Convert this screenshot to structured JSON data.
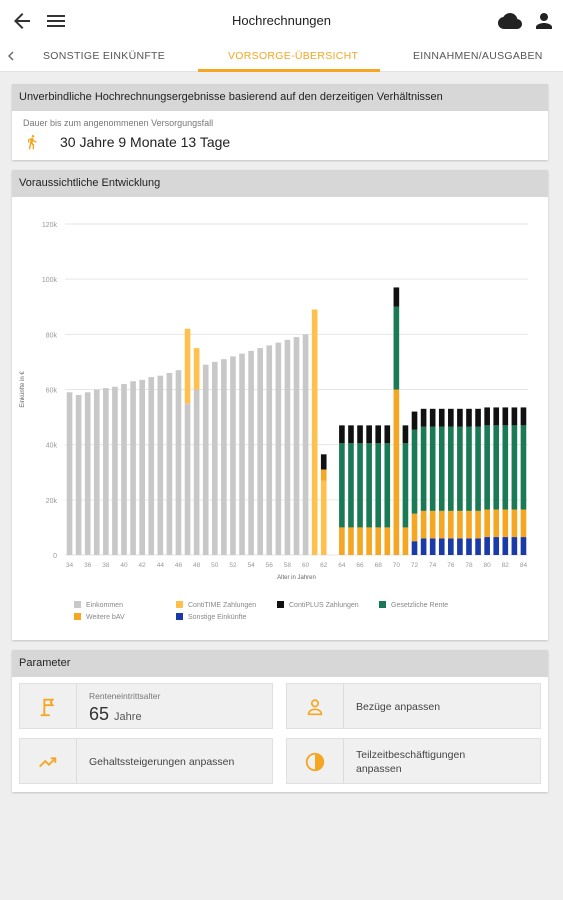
{
  "appbar": {
    "title": "Hochrechnungen",
    "icons": [
      "back-arrow-icon",
      "menu-icon",
      "cloud-icon",
      "account-icon"
    ]
  },
  "tabs": [
    {
      "label": "SONSTIGE EINKÜNFTE",
      "active": false
    },
    {
      "label": "VORSORGE-ÜBERSICHT",
      "active": true
    },
    {
      "label": "EINNAHMEN/AUSGABEN",
      "active": false
    }
  ],
  "summary": {
    "heading": "Unverbindliche Hochrechnungsergebnisse basierend auf den derzeitigen Verhältnissen",
    "label": "Dauer bis zum angenommenen Versorgungsfall",
    "duration": "30 Jahre 9 Monate 13 Tage",
    "icon": "running-person-icon"
  },
  "chart_section": {
    "heading": "Voraussichtliche Entwicklung"
  },
  "chart_data": {
    "type": "bar",
    "stacked": true,
    "title": "",
    "xlabel": "Alter in Jahren",
    "ylabel": "Einkünfte in €",
    "ylim": [
      0,
      120000
    ],
    "yticks": [
      "0",
      "20k",
      "40k",
      "60k",
      "80k",
      "100k",
      "120k"
    ],
    "x": [
      34,
      35,
      36,
      37,
      38,
      39,
      40,
      41,
      42,
      43,
      44,
      45,
      46,
      47,
      48,
      49,
      50,
      51,
      52,
      53,
      54,
      55,
      56,
      57,
      58,
      59,
      60,
      61,
      62,
      63,
      64,
      65,
      66,
      67,
      68,
      69,
      70,
      71,
      72,
      73,
      74,
      75,
      76,
      77,
      78,
      79,
      80,
      81,
      82,
      83,
      84
    ],
    "xtick_labels": [
      "34",
      "36",
      "38",
      "40",
      "42",
      "44",
      "46",
      "48",
      "50",
      "52",
      "54",
      "56",
      "58",
      "60",
      "62",
      "64",
      "66",
      "68",
      "70",
      "72",
      "74",
      "76",
      "78",
      "80",
      "82",
      "84"
    ],
    "series": [
      {
        "name": "Einkommen",
        "color": "#c8c8c8",
        "values": [
          59000,
          58000,
          59000,
          60000,
          60500,
          61000,
          62000,
          63000,
          63500,
          64500,
          65000,
          66000,
          67000,
          55000,
          60000,
          69000,
          70000,
          71000,
          72000,
          73000,
          74000,
          75000,
          76000,
          77000,
          78000,
          79000,
          80000,
          0,
          0,
          0,
          0,
          0,
          0,
          0,
          0,
          0,
          0,
          0,
          0,
          0,
          0,
          0,
          0,
          0,
          0,
          0,
          0,
          0,
          0,
          0,
          0
        ]
      },
      {
        "name": "ContiTIME Zahlungen",
        "color": "#ffc04d",
        "values": [
          0,
          0,
          0,
          0,
          0,
          0,
          0,
          0,
          0,
          0,
          0,
          0,
          0,
          27000,
          15000,
          0,
          0,
          0,
          0,
          0,
          0,
          0,
          0,
          0,
          0,
          0,
          0,
          89000,
          27000,
          0,
          0,
          0,
          0,
          0,
          0,
          0,
          0,
          0,
          0,
          0,
          0,
          0,
          0,
          0,
          0,
          0,
          0,
          0,
          0,
          0,
          0
        ]
      },
      {
        "name": "ContiPLUS Zahlungen",
        "color": "#111111",
        "values": [
          0,
          0,
          0,
          0,
          0,
          0,
          0,
          0,
          0,
          0,
          0,
          0,
          0,
          0,
          0,
          0,
          0,
          0,
          0,
          0,
          0,
          0,
          0,
          0,
          0,
          0,
          0,
          0,
          5500,
          0,
          6500,
          6500,
          6500,
          6500,
          6500,
          6500,
          7000,
          6500,
          6500,
          6500,
          6500,
          6500,
          6500,
          6500,
          6500,
          6500,
          6500,
          6500,
          6500,
          6500,
          6500
        ]
      },
      {
        "name": "Gesetzliche Rente",
        "color": "#1a7a55",
        "values": [
          0,
          0,
          0,
          0,
          0,
          0,
          0,
          0,
          0,
          0,
          0,
          0,
          0,
          0,
          0,
          0,
          0,
          0,
          0,
          0,
          0,
          0,
          0,
          0,
          0,
          0,
          0,
          0,
          0,
          0,
          30500,
          30500,
          30500,
          30500,
          30500,
          30500,
          30000,
          30500,
          30500,
          30500,
          30500,
          30500,
          30500,
          30500,
          30500,
          30500,
          30500,
          30500,
          30500,
          30500,
          30500
        ]
      },
      {
        "name": "Weitere bAV",
        "color": "#f5a623",
        "values": [
          0,
          0,
          0,
          0,
          0,
          0,
          0,
          0,
          0,
          0,
          0,
          0,
          0,
          0,
          0,
          0,
          0,
          0,
          0,
          0,
          0,
          0,
          0,
          0,
          0,
          0,
          0,
          0,
          4000,
          0,
          10000,
          10000,
          10000,
          10000,
          10000,
          10000,
          60000,
          10000,
          10000,
          10000,
          10000,
          10000,
          10000,
          10000,
          10000,
          10000,
          10000,
          10000,
          10000,
          10000,
          10000
        ]
      },
      {
        "name": "Sonstige Einkünfte",
        "color": "#1a3aa8",
        "values": [
          0,
          0,
          0,
          0,
          0,
          0,
          0,
          0,
          0,
          0,
          0,
          0,
          0,
          0,
          0,
          0,
          0,
          0,
          0,
          0,
          0,
          0,
          0,
          0,
          0,
          0,
          0,
          0,
          0,
          0,
          0,
          0,
          0,
          0,
          0,
          0,
          0,
          0,
          5000,
          6000,
          6000,
          6000,
          6000,
          6000,
          6000,
          6000,
          6500,
          6500,
          6500,
          6500,
          6500
        ]
      }
    ],
    "legend_position": "bottom",
    "grid": true
  },
  "parameters": {
    "heading": "Parameter",
    "retirement": {
      "label": "Renteneintrittsalter",
      "value": "65",
      "unit": "Jahre",
      "icon": "flag-icon"
    },
    "salary_adjust": {
      "label": "Bezüge anpassen",
      "icon": "person-icon"
    },
    "salary_growth": {
      "label": "Gehaltssteigerungen anpassen",
      "icon": "trending-up-icon"
    },
    "part_time": {
      "label": "Teilzeitbeschäftigungen anpassen",
      "icon": "clock-icon"
    }
  }
}
